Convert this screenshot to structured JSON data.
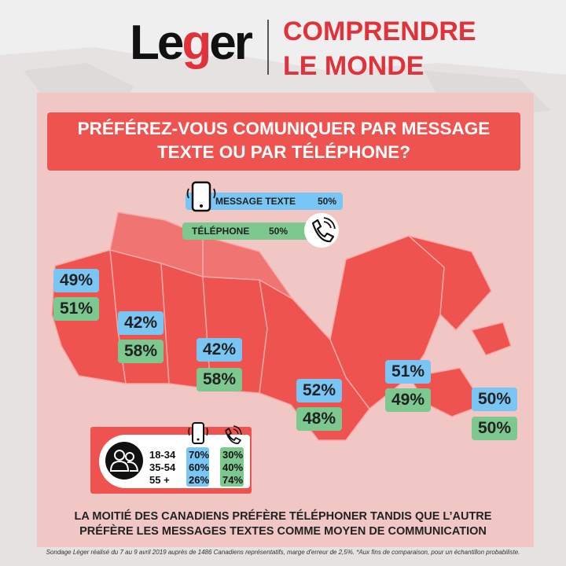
{
  "header": {
    "logo": "Leger",
    "tagline_line1": "COMPRENDRE",
    "tagline_line2": "LE MONDE"
  },
  "question": {
    "line1": "PRÉFÉREZ-VOUS COMUNIQUER PAR MESSAGE",
    "line2": "TEXTE OU PAR TÉLÉPHONE?"
  },
  "legend": {
    "text_label": "MESSAGE TEXTE",
    "text_value": "50%",
    "phone_label": "TÉLÉPHONE",
    "phone_value": "50%"
  },
  "icons": {
    "smartphone": "smartphone-icon",
    "phone": "phone-icon",
    "people": "people-icon"
  },
  "colors": {
    "red": "#ef5350",
    "text_blue": "#79c6f4",
    "phone_green": "#7cc88e",
    "panel_pink": "#f1c7c5"
  },
  "chart_data": {
    "type": "map",
    "series": [
      {
        "name": "MESSAGE TEXTE",
        "values": [
          49,
          42,
          42,
          52,
          51,
          50
        ]
      },
      {
        "name": "TÉLÉPHONE",
        "values": [
          51,
          58,
          58,
          48,
          49,
          50
        ]
      }
    ],
    "regions": [
      {
        "text_label": "49%",
        "phone_label": "51%"
      },
      {
        "text_label": "42%",
        "phone_label": "58%"
      },
      {
        "text_label": "42%",
        "phone_label": "58%"
      },
      {
        "text_label": "52%",
        "phone_label": "48%"
      },
      {
        "text_label": "51%",
        "phone_label": "49%"
      },
      {
        "text_label": "50%",
        "phone_label": "50%"
      }
    ],
    "age_groups": {
      "categories": [
        "18-34",
        "35-54",
        "55 +"
      ],
      "text_values": [
        70,
        60,
        26
      ],
      "phone_values": [
        30,
        40,
        74
      ],
      "text_labels": [
        "70%",
        "60%",
        "26%"
      ],
      "phone_labels": [
        "30%",
        "40%",
        "74%"
      ]
    }
  },
  "conclusion": {
    "line1": "LA MOITIÉ DES CANADIENS PRÉFÈRE TÉLÉPHONER TANDIS QUE L’AUTRE",
    "line2": "PRÉFÈRE LES MESSAGES TEXTES COMME MOYEN DE COMMUNICATION"
  },
  "footnote": "Sondage Léger réalisé du 7 au 9 avril 2019 auprès de 1486 Canadiens représentatifs, marge d'erreur de 2,5%. *Aux fins de comparaison, pour un échantillon probabiliste."
}
